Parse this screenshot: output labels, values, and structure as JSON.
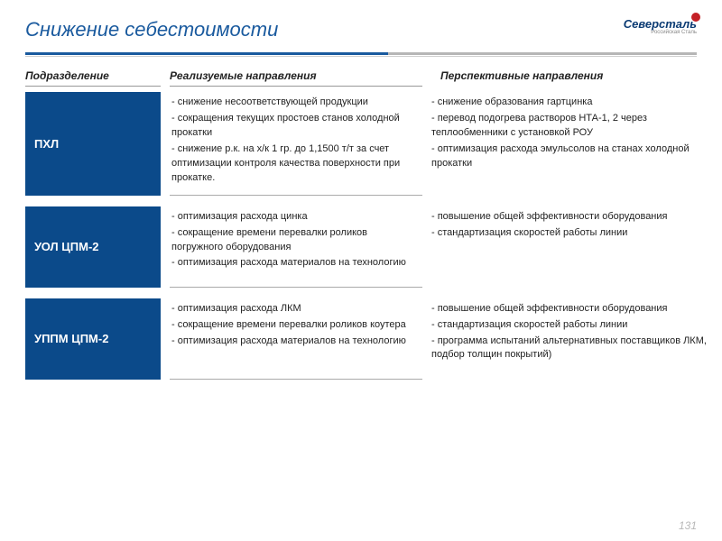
{
  "title": "Снижение себестоимости",
  "logo": {
    "main": "Северсталь",
    "sub": "Российская Сталь"
  },
  "headers": {
    "unit": "Подразделение",
    "current": "Реализуемые направления",
    "future": "Перспективные  направления"
  },
  "rows": [
    {
      "unit": "ПХЛ",
      "current": [
        "- снижение несоответствующей продукции",
        "- сокращения текущих простоев станов холодной прокатки",
        "- снижение р.к. на х/к 1 гр. до 1,1500 т/т за счет оптимизации контроля качества поверхности при прокатке."
      ],
      "future": [
        "- снижение образования гартцинка",
        "- перевод подогрева растворов НТА-1, 2 через теплообменники с установкой РОУ",
        "- оптимизация расхода эмульсолов на станах холодной прокатки"
      ]
    },
    {
      "unit": "УОЛ ЦПМ-2",
      "current": [
        "- оптимизация расхода цинка",
        "- сокращение времени перевалки роликов погружного оборудования",
        "- оптимизация расхода материалов на технологию"
      ],
      "future": [
        "- повышение общей эффективности оборудования",
        "- стандартизация скоростей работы линии"
      ]
    },
    {
      "unit": "УППМ ЦПМ-2",
      "current": [
        "- оптимизация расхода ЛКМ",
        "- сокращение времени перевалки роликов коутера",
        "- оптимизация расхода материалов на технологию"
      ],
      "future": [
        "- повышение общей эффективности оборудования",
        "- стандартизация скоростей работы линии",
        "- программа испытаний альтернативных поставщиков ЛКМ, подбор толщин покрытий)"
      ]
    }
  ],
  "page_number": "131",
  "colors": {
    "brand_blue": "#0b4a8a",
    "title_blue": "#1a5a9e",
    "logo_red": "#c42026"
  }
}
